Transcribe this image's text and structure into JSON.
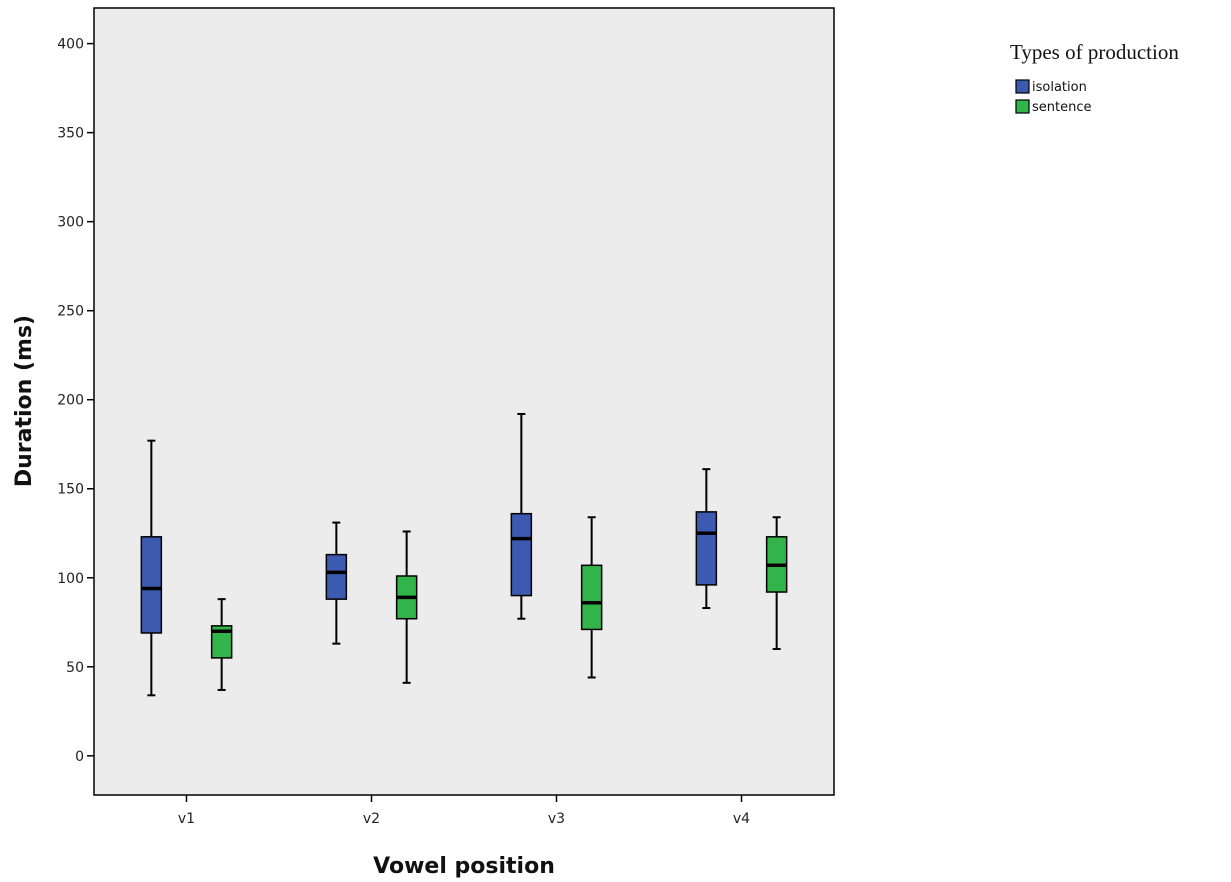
{
  "chart_data": {
    "type": "boxplot",
    "xlabel": "Vowel position",
    "ylabel": "Duration (ms)",
    "ylim": [
      -22,
      420
    ],
    "yticks": [
      0,
      50,
      100,
      150,
      200,
      250,
      300,
      350,
      400
    ],
    "categories": [
      "v1",
      "v2",
      "v3",
      "v4"
    ],
    "grid": false,
    "plot_background": "#ececec",
    "legend": {
      "title": "Types of production",
      "placement": "right-top"
    },
    "series": [
      {
        "name": "isolation",
        "color": "#3c5bb0",
        "boxes": [
          {
            "category": "v1",
            "min": 34,
            "q1": 69,
            "median": 94,
            "q3": 123,
            "max": 177
          },
          {
            "category": "v2",
            "min": 63,
            "q1": 88,
            "median": 103,
            "q3": 113,
            "max": 131
          },
          {
            "category": "v3",
            "min": 77,
            "q1": 90,
            "median": 122,
            "q3": 136,
            "max": 192
          },
          {
            "category": "v4",
            "min": 83,
            "q1": 96,
            "median": 125,
            "q3": 137,
            "max": 161
          }
        ]
      },
      {
        "name": "sentence",
        "color": "#33b44a",
        "boxes": [
          {
            "category": "v1",
            "min": 37,
            "q1": 55,
            "median": 70,
            "q3": 73,
            "max": 88
          },
          {
            "category": "v2",
            "min": 41,
            "q1": 77,
            "median": 89,
            "q3": 101,
            "max": 126
          },
          {
            "category": "v3",
            "min": 44,
            "q1": 71,
            "median": 86,
            "q3": 107,
            "max": 134
          },
          {
            "category": "v4",
            "min": 60,
            "q1": 92,
            "median": 107,
            "q3": 123,
            "max": 134
          }
        ]
      }
    ]
  }
}
